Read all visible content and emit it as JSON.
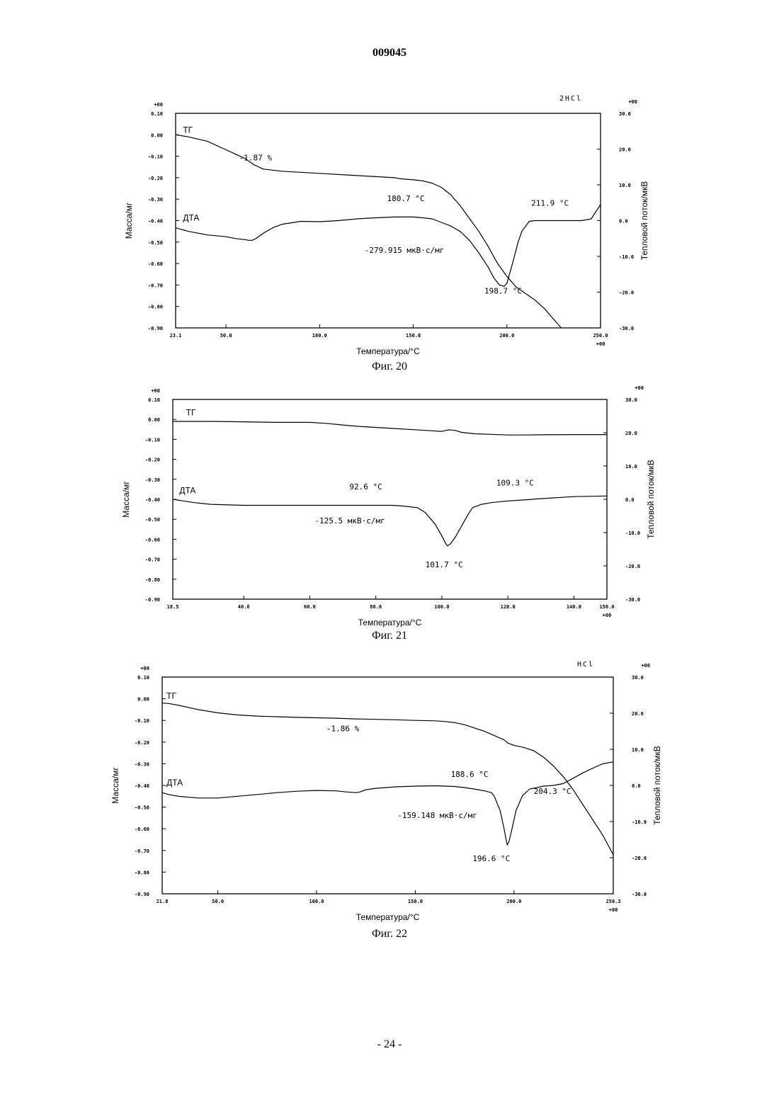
{
  "page": {
    "doc_number": "009045",
    "page_number": "- 24 -"
  },
  "chart_data": [
    {
      "type": "line",
      "caption": "Фиг. 20",
      "corner_label": "2HCl",
      "xlabel": "Температура/°C",
      "ylabel_left": "Масса/мг",
      "ylabel_right": "Тепловой поток/мкВ",
      "xlim": [
        23.1,
        250.0
      ],
      "ylim_left": [
        -0.9,
        0.1
      ],
      "ylim_right": [
        -30,
        30
      ],
      "x_ticks": [
        "23.1",
        "50.0",
        "100.0",
        "150.0",
        "200.0",
        "250.0"
      ],
      "x_tick_values": [
        23.1,
        50,
        100,
        150,
        200,
        250
      ],
      "x_end_suffix": "+00",
      "left_ticks": [
        "0.10",
        "0.00",
        "-0.10",
        "-0.20",
        "-0.30",
        "-0.40",
        "-0.50",
        "-0.60",
        "-0.70",
        "-0.80",
        "-0.90"
      ],
      "left_top_suffix": "+00",
      "right_ticks": [
        "30.0",
        "20.0",
        "10.0",
        "0.0",
        "-10.0",
        "-20.0",
        "-30.0"
      ],
      "right_top_suffix": "+00",
      "series": [
        {
          "name": "ТГ",
          "axis": "left",
          "x": [
            23.1,
            30,
            40,
            50,
            55,
            60,
            65,
            70,
            80,
            90,
            100,
            110,
            120,
            130,
            140,
            143,
            150,
            155,
            160,
            165,
            170,
            175,
            180,
            185,
            190,
            195,
            200,
            205,
            210,
            215,
            220,
            225,
            229
          ],
          "y": [
            0.0,
            -0.01,
            -0.03,
            -0.07,
            -0.09,
            -0.11,
            -0.14,
            -0.16,
            -0.17,
            -0.175,
            -0.18,
            -0.185,
            -0.19,
            -0.195,
            -0.2,
            -0.205,
            -0.21,
            -0.215,
            -0.225,
            -0.245,
            -0.28,
            -0.33,
            -0.39,
            -0.45,
            -0.52,
            -0.6,
            -0.66,
            -0.71,
            -0.74,
            -0.77,
            -0.81,
            -0.86,
            -0.9
          ]
        },
        {
          "name": "ДТА",
          "axis": "right",
          "x": [
            23.1,
            30,
            40,
            50,
            55,
            60,
            62,
            64,
            66,
            70,
            75,
            80,
            90,
            100,
            110,
            120,
            130,
            140,
            150,
            155,
            160,
            165,
            170,
            175,
            180,
            185,
            190,
            193,
            196,
            198,
            198.7,
            200,
            203,
            206,
            208,
            211.9,
            215,
            220,
            225,
            230,
            235,
            240,
            245,
            250
          ],
          "y": [
            -2.0,
            -3.0,
            -4.0,
            -4.5,
            -5.0,
            -5.3,
            -5.5,
            -5.5,
            -5.0,
            -3.5,
            -2.0,
            -1.0,
            -0.2,
            -0.3,
            0.0,
            0.5,
            0.8,
            1.0,
            1.0,
            0.8,
            0.5,
            -0.5,
            -1.5,
            -3.0,
            -5.5,
            -9.0,
            -13.0,
            -16.0,
            -18.0,
            -18.3,
            -18.3,
            -17.5,
            -12.0,
            -6.0,
            -3.0,
            -0.2,
            0.0,
            0.0,
            0.0,
            0.0,
            0.0,
            0.0,
            0.5,
            4.5
          ]
        }
      ],
      "annotations": [
        {
          "text": "ТГ",
          "kind": "series",
          "x": 27,
          "y": 0.01,
          "axis": "left"
        },
        {
          "text": "ДТА",
          "kind": "series",
          "x": 27,
          "y": -0.4,
          "axis": "left"
        },
        {
          "text": "-1.87 %",
          "kind": "mono",
          "x": 57,
          "y": -0.12,
          "axis": "left"
        },
        {
          "text": "180.7 °C",
          "kind": "mono",
          "x": 136,
          "y": -0.31,
          "axis": "left"
        },
        {
          "text": "211.9 °C",
          "kind": "mono",
          "x": 213,
          "y": -0.33,
          "axis": "left"
        },
        {
          "text": "-279.915 мкВ·с/мг",
          "kind": "mono",
          "x": 124,
          "y": -0.55,
          "axis": "left"
        },
        {
          "text": "198.7 °C",
          "kind": "mono",
          "x": 188,
          "y": -0.74,
          "axis": "left"
        }
      ]
    },
    {
      "type": "line",
      "caption": "Фиг. 21",
      "corner_label": "",
      "xlabel": "Температура/°C",
      "ylabel_left": "Масса/мг",
      "ylabel_right": "Тепловой поток/мкВ",
      "xlim": [
        18.5,
        150.0
      ],
      "ylim_left": [
        -0.9,
        0.1
      ],
      "ylim_right": [
        -30,
        30
      ],
      "x_ticks": [
        "18.5",
        "40.0",
        "60.0",
        "80.0",
        "100.0",
        "120.0",
        "140.0",
        "150.0"
      ],
      "x_tick_values": [
        18.5,
        40,
        60,
        80,
        100,
        120,
        140,
        150
      ],
      "x_end_suffix": "+00",
      "left_ticks": [
        "0.10",
        "0.00",
        "-0.10",
        "-0.20",
        "-0.30",
        "-0.40",
        "-0.50",
        "-0.60",
        "-0.70",
        "-0.80",
        "-0.90"
      ],
      "left_top_suffix": "+00",
      "right_ticks": [
        "30.0",
        "20.0",
        "10.0",
        "0.0",
        "-10.0",
        "-20.0",
        "-30.0"
      ],
      "right_top_suffix": "+00",
      "series": [
        {
          "name": "ТГ",
          "axis": "left",
          "x": [
            18.5,
            30,
            40,
            50,
            60,
            65,
            70,
            75,
            80,
            85,
            90,
            95,
            100,
            102,
            104,
            106,
            110,
            115,
            120,
            125,
            130,
            140,
            150
          ],
          "y": [
            -0.01,
            -0.01,
            -0.012,
            -0.015,
            -0.015,
            -0.02,
            -0.028,
            -0.035,
            -0.04,
            -0.045,
            -0.05,
            -0.055,
            -0.06,
            -0.052,
            -0.055,
            -0.065,
            -0.072,
            -0.075,
            -0.078,
            -0.078,
            -0.077,
            -0.076,
            -0.076
          ]
        },
        {
          "name": "ДТА",
          "axis": "right",
          "x": [
            18.5,
            25,
            30,
            40,
            50,
            60,
            70,
            80,
            85,
            88,
            92.6,
            95,
            98,
            100,
            101,
            101.7,
            102.5,
            104,
            106,
            108,
            109.3,
            112,
            115,
            120,
            125,
            130,
            140,
            150
          ],
          "y": [
            0.0,
            -1.0,
            -1.5,
            -1.8,
            -1.8,
            -1.8,
            -1.8,
            -1.8,
            -1.8,
            -2.0,
            -2.5,
            -4.0,
            -7.5,
            -11.0,
            -13.0,
            -14.0,
            -13.5,
            -11.5,
            -8.0,
            -4.5,
            -2.5,
            -1.5,
            -1.0,
            -0.5,
            -0.2,
            0.2,
            0.8,
            1.0
          ]
        }
      ],
      "annotations": [
        {
          "text": "ТГ",
          "kind": "series",
          "x": 22.5,
          "y": 0.02,
          "axis": "left"
        },
        {
          "text": "ДТА",
          "kind": "series",
          "x": 20.5,
          "y": -0.37,
          "axis": "left"
        },
        {
          "text": "92.6 °C",
          "kind": "mono",
          "x": 72,
          "y": -0.35,
          "axis": "left"
        },
        {
          "text": "109.3 °C",
          "kind": "mono",
          "x": 116.5,
          "y": -0.33,
          "axis": "left"
        },
        {
          "text": "-125.5 мкВ·с/мг",
          "kind": "mono",
          "x": 61.5,
          "y": -0.52,
          "axis": "left"
        },
        {
          "text": "101.7 °C",
          "kind": "mono",
          "x": 95,
          "y": -0.74,
          "axis": "left"
        }
      ]
    },
    {
      "type": "line",
      "caption": "Фиг. 22",
      "corner_label": "HCl",
      "xlabel": "Температура/°C",
      "ylabel_left": "Масса/мг",
      "ylabel_right": "Тепловой поток/мкВ",
      "xlim": [
        21.8,
        250.3
      ],
      "ylim_left": [
        -0.9,
        0.1
      ],
      "ylim_right": [
        -30,
        30
      ],
      "x_ticks": [
        "21.8",
        "50.0",
        "100.0",
        "150.0",
        "200.0",
        "250.3"
      ],
      "x_tick_values": [
        21.8,
        50,
        100,
        150,
        200,
        250.3
      ],
      "x_end_suffix": "+00",
      "left_ticks": [
        "0.10",
        "0.00",
        "-0.10",
        "-0.20",
        "-0.30",
        "-0.40",
        "-0.50",
        "-0.60",
        "-0.70",
        "-0.80",
        "-0.90"
      ],
      "left_top_suffix": "+00",
      "right_ticks": [
        "30.0",
        "20.0",
        "10.0",
        "0.0",
        "-10.0",
        "-20.0",
        "-30.0"
      ],
      "right_top_suffix": "+00",
      "series": [
        {
          "name": "ТГ",
          "axis": "left",
          "x": [
            21.8,
            25,
            30,
            40,
            50,
            60,
            70,
            80,
            90,
            100,
            110,
            120,
            130,
            140,
            150,
            160,
            165,
            170,
            175,
            180,
            185,
            190,
            195,
            197,
            200,
            205,
            210,
            215,
            220,
            225,
            230,
            235,
            240,
            245,
            250.3
          ],
          "y": [
            -0.02,
            -0.022,
            -0.03,
            -0.05,
            -0.065,
            -0.075,
            -0.08,
            -0.083,
            -0.086,
            -0.088,
            -0.09,
            -0.093,
            -0.095,
            -0.097,
            -0.1,
            -0.102,
            -0.105,
            -0.11,
            -0.12,
            -0.135,
            -0.15,
            -0.17,
            -0.19,
            -0.205,
            -0.215,
            -0.225,
            -0.24,
            -0.27,
            -0.31,
            -0.36,
            -0.42,
            -0.49,
            -0.56,
            -0.63,
            -0.72
          ]
        },
        {
          "name": "ДТА",
          "axis": "right",
          "x": [
            21.8,
            25,
            30,
            40,
            50,
            60,
            70,
            80,
            90,
            100,
            110,
            115,
            120,
            122,
            125,
            130,
            140,
            150,
            160,
            165,
            170,
            175,
            180,
            185,
            188.6,
            190,
            193,
            195,
            196,
            196.6,
            197.5,
            199,
            201,
            204.3,
            208,
            215,
            220,
            225,
            230,
            235,
            240,
            245,
            250.3
          ],
          "y": [
            -2.0,
            -2.5,
            -3.0,
            -3.5,
            -3.5,
            -3.0,
            -2.5,
            -2.0,
            -1.6,
            -1.4,
            -1.5,
            -1.8,
            -2.0,
            -1.8,
            -1.2,
            -0.8,
            -0.4,
            -0.2,
            -0.1,
            -0.2,
            -0.3,
            -0.6,
            -1.0,
            -1.5,
            -2.0,
            -3.0,
            -7.0,
            -12.0,
            -15.0,
            -16.5,
            -15.5,
            -12.0,
            -7.0,
            -2.8,
            -1.0,
            -0.2,
            0.0,
            0.5,
            2.0,
            3.5,
            4.8,
            6.0,
            6.5
          ]
        }
      ],
      "annotations": [
        {
          "text": "ТГ",
          "kind": "series",
          "x": 24,
          "y": 0.0,
          "axis": "left"
        },
        {
          "text": "ДТА",
          "kind": "series",
          "x": 24,
          "y": -0.4,
          "axis": "left"
        },
        {
          "text": "-1.86 %",
          "kind": "mono",
          "x": 105,
          "y": -0.15,
          "axis": "left"
        },
        {
          "text": "188.6 °C",
          "kind": "mono",
          "x": 168,
          "y": -0.36,
          "axis": "left"
        },
        {
          "text": "204.3 °C",
          "kind": "mono",
          "x": 210,
          "y": -0.44,
          "axis": "left"
        },
        {
          "text": "-159.148 мкВ·с/мг",
          "kind": "mono",
          "x": 141,
          "y": -0.55,
          "axis": "left"
        },
        {
          "text": "196.6 °C",
          "kind": "mono",
          "x": 179,
          "y": -0.75,
          "axis": "left"
        }
      ]
    }
  ]
}
